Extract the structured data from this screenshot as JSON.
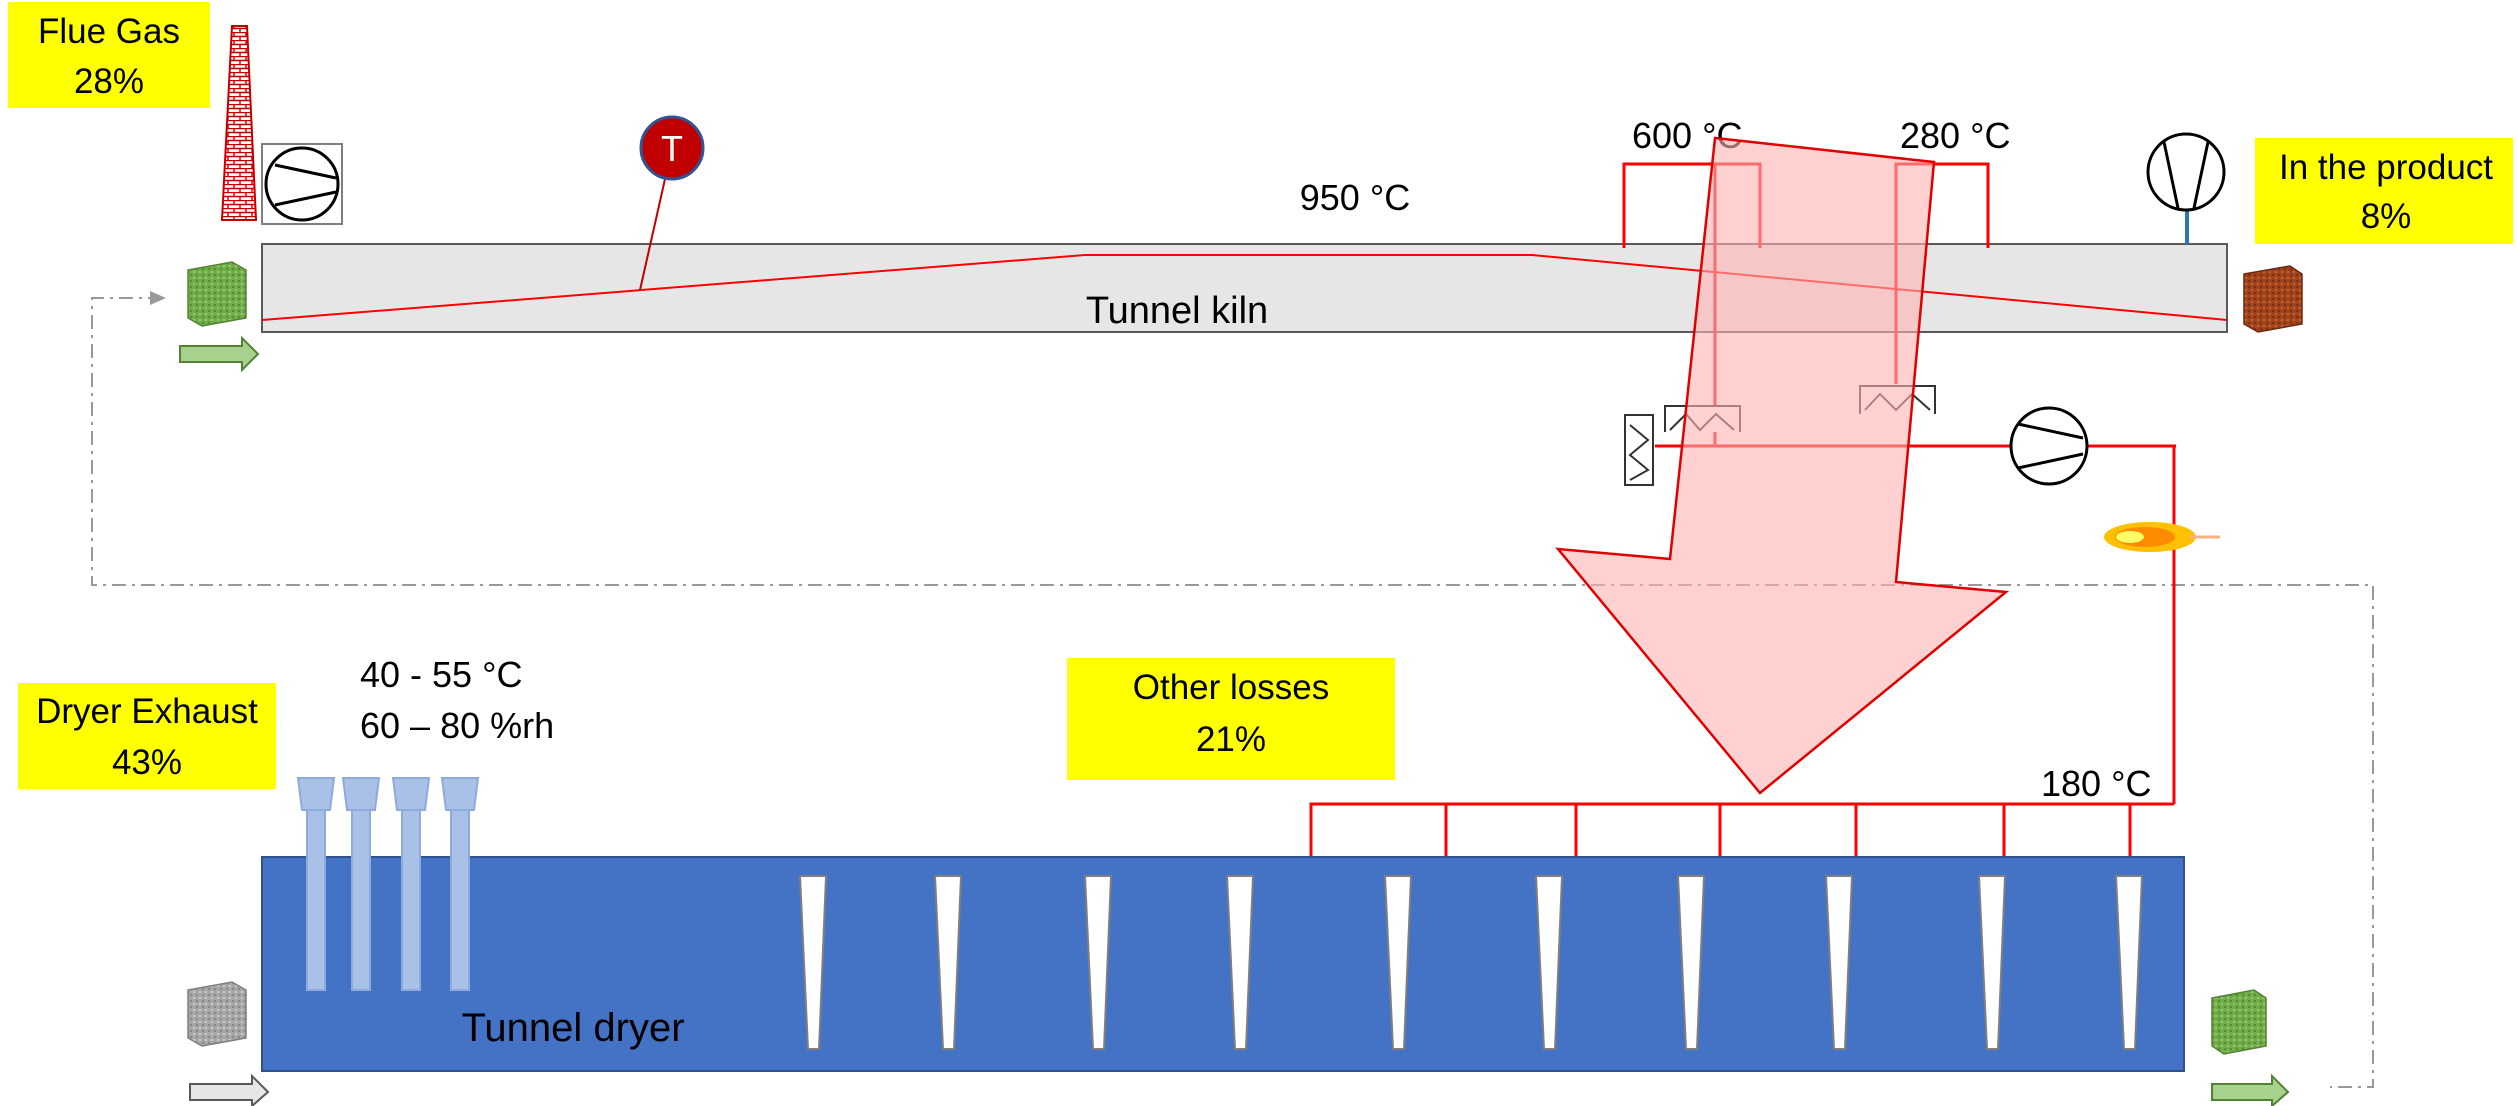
{
  "labels": {
    "flue_gas_title": "Flue Gas",
    "flue_gas_pct": "28%",
    "product_title": "In the product",
    "product_pct": "8%",
    "dryer_exhaust_title": "Dryer Exhaust",
    "dryer_exhaust_pct": "43%",
    "other_losses_title": "Other losses",
    "other_losses_pct": "21%",
    "temp_kiln": "950 °C",
    "temp_600": "600 °C",
    "temp_280": "280 °C",
    "temp_180": "180 °C",
    "dryer_exhaust_temp": "40 - 55 °C",
    "dryer_exhaust_rh": "60 – 80 %rh",
    "tunnel_kiln": "Tunnel kiln",
    "tunnel_dryer": "Tunnel dryer",
    "temperature_sensor": "T"
  },
  "colors": {
    "highlight": "#ffff00",
    "kiln_fill": "#e7e6e6",
    "dryer_fill": "#4472c4",
    "hot_line": "#ff0000",
    "sensor": "#c00000",
    "big_arrow_fill": "#ffb3b3",
    "big_arrow_stroke": "#e00000",
    "green_brick": "#70ad47",
    "fired_brick": "#a0431c",
    "exhaust_stack": "#a9c1e6",
    "dashed_line": "#999999"
  },
  "icons": {
    "chimney": "chimney-icon",
    "fan": "fan-icon",
    "temperature_sensor": "temperature-sensor-icon",
    "heat_exchanger": "heat-exchanger-icon",
    "burner_flame": "flame-icon",
    "green_brick": "green-brick-icon",
    "fired_brick": "fired-brick-icon",
    "dried_brick": "dried-brick-icon",
    "flow_arrow": "arrow-right-icon"
  }
}
